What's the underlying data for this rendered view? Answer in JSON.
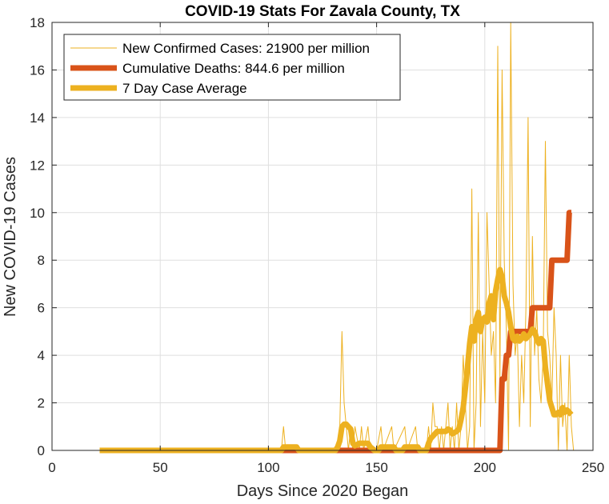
{
  "chart_data": {
    "type": "line",
    "title": "COVID-19 Stats For Zavala County, TX",
    "xlabel": "Days Since 2020 Began",
    "ylabel": "New COVID-19 Cases",
    "xlim": [
      0,
      250
    ],
    "ylim": [
      0,
      18
    ],
    "xticks": [
      0,
      50,
      100,
      150,
      200,
      250
    ],
    "yticks": [
      0,
      2,
      4,
      6,
      8,
      10,
      12,
      14,
      16,
      18
    ],
    "grid": true,
    "legend_position": "top-left",
    "series": [
      {
        "name": "New Confirmed Cases: 21900 per million",
        "color": "#EDB120",
        "style": "thin",
        "points": [
          [
            22,
            0
          ],
          [
            105,
            0
          ],
          [
            106,
            0
          ],
          [
            107,
            1
          ],
          [
            108,
            0
          ],
          [
            132,
            0
          ],
          [
            133,
            1
          ],
          [
            134,
            5
          ],
          [
            135,
            2
          ],
          [
            136,
            1
          ],
          [
            137,
            0
          ],
          [
            138,
            1
          ],
          [
            139,
            0
          ],
          [
            140,
            1
          ],
          [
            142,
            0
          ],
          [
            143,
            1
          ],
          [
            144,
            0
          ],
          [
            146,
            1
          ],
          [
            147,
            0
          ],
          [
            150,
            0
          ],
          [
            152,
            1
          ],
          [
            153,
            0
          ],
          [
            157,
            1
          ],
          [
            158,
            0
          ],
          [
            163,
            1
          ],
          [
            164,
            0
          ],
          [
            168,
            1
          ],
          [
            169,
            0
          ],
          [
            172,
            0
          ],
          [
            173,
            0
          ],
          [
            174,
            1
          ],
          [
            175,
            0
          ],
          [
            176,
            2
          ],
          [
            177,
            1
          ],
          [
            178,
            1
          ],
          [
            179,
            0
          ],
          [
            180,
            1
          ],
          [
            181,
            0
          ],
          [
            182,
            1
          ],
          [
            183,
            2
          ],
          [
            184,
            0
          ],
          [
            185,
            1
          ],
          [
            186,
            0
          ],
          [
            187,
            2
          ],
          [
            188,
            0
          ],
          [
            189,
            1
          ],
          [
            190,
            4
          ],
          [
            191,
            2
          ],
          [
            192,
            0
          ],
          [
            193,
            1
          ],
          [
            194,
            11
          ],
          [
            195,
            0
          ],
          [
            196,
            2
          ],
          [
            197,
            10
          ],
          [
            198,
            1
          ],
          [
            199,
            5
          ],
          [
            200,
            2
          ],
          [
            201,
            10
          ],
          [
            202,
            7
          ],
          [
            203,
            4
          ],
          [
            204,
            5
          ],
          [
            205,
            2
          ],
          [
            206,
            17
          ],
          [
            207,
            3
          ],
          [
            208,
            16
          ],
          [
            209,
            8
          ],
          [
            210,
            5
          ],
          [
            211,
            0
          ],
          [
            212,
            18
          ],
          [
            213,
            7
          ],
          [
            214,
            4
          ],
          [
            215,
            5
          ],
          [
            216,
            1
          ],
          [
            217,
            4
          ],
          [
            218,
            2
          ],
          [
            219,
            6
          ],
          [
            220,
            14
          ],
          [
            221,
            1
          ],
          [
            222,
            9
          ],
          [
            223,
            4
          ],
          [
            224,
            6
          ],
          [
            225,
            3
          ],
          [
            226,
            2
          ],
          [
            227,
            4
          ],
          [
            228,
            13
          ],
          [
            229,
            5
          ],
          [
            230,
            4
          ],
          [
            231,
            2
          ],
          [
            232,
            6
          ],
          [
            233,
            4
          ],
          [
            234,
            0
          ],
          [
            235,
            4
          ],
          [
            236,
            1
          ],
          [
            237,
            2
          ],
          [
            238,
            0
          ],
          [
            239,
            4
          ],
          [
            240,
            1
          ],
          [
            241,
            0
          ]
        ]
      },
      {
        "name": "Cumulative Deaths: 844.6 per million",
        "color": "#D95319",
        "style": "thick",
        "points": [
          [
            22,
            0
          ],
          [
            207,
            0
          ],
          [
            208,
            3
          ],
          [
            209,
            3
          ],
          [
            210,
            4
          ],
          [
            211,
            4
          ],
          [
            212,
            5
          ],
          [
            220,
            5
          ],
          [
            221,
            5
          ],
          [
            222,
            6
          ],
          [
            230,
            6
          ],
          [
            231,
            8
          ],
          [
            238,
            8
          ],
          [
            239,
            10
          ],
          [
            240,
            10
          ]
        ]
      },
      {
        "name": "7 Day Case Average",
        "color": "#EDB120",
        "style": "thick",
        "points": [
          [
            22,
            0
          ],
          [
            106,
            0
          ],
          [
            107,
            0.14
          ],
          [
            113,
            0.14
          ],
          [
            114,
            0
          ],
          [
            131,
            0
          ],
          [
            132,
            0.14
          ],
          [
            133,
            0.4
          ],
          [
            134,
            1.0
          ],
          [
            135,
            1.1
          ],
          [
            136,
            1.1
          ],
          [
            137,
            1.0
          ],
          [
            138,
            0.9
          ],
          [
            139,
            0.3
          ],
          [
            140,
            0.2
          ],
          [
            142,
            0.3
          ],
          [
            146,
            0.3
          ],
          [
            147,
            0.15
          ],
          [
            149,
            0
          ],
          [
            151,
            0
          ],
          [
            152,
            0.14
          ],
          [
            158,
            0.14
          ],
          [
            159,
            0
          ],
          [
            162,
            0
          ],
          [
            163,
            0.14
          ],
          [
            169,
            0.14
          ],
          [
            170,
            0
          ],
          [
            173,
            0
          ],
          [
            174,
            0.3
          ],
          [
            175,
            0.5
          ],
          [
            176,
            0.6
          ],
          [
            177,
            0.7
          ],
          [
            178,
            0.8
          ],
          [
            180,
            0.8
          ],
          [
            182,
            0.8
          ],
          [
            183,
            0.9
          ],
          [
            184,
            0.85
          ],
          [
            185,
            0.7
          ],
          [
            187,
            0.8
          ],
          [
            188,
            0.9
          ],
          [
            189,
            1.3
          ],
          [
            190,
            1.8
          ],
          [
            191,
            2.6
          ],
          [
            192,
            3.5
          ],
          [
            193,
            4.5
          ],
          [
            194,
            5.2
          ],
          [
            195,
            4.6
          ],
          [
            196,
            5.5
          ],
          [
            197,
            5.8
          ],
          [
            198,
            5.0
          ],
          [
            199,
            5.5
          ],
          [
            200,
            5.6
          ],
          [
            201,
            5.4
          ],
          [
            202,
            6.2
          ],
          [
            203,
            6.5
          ],
          [
            204,
            5.5
          ],
          [
            205,
            6.7
          ],
          [
            206,
            7.2
          ],
          [
            207,
            7.6
          ],
          [
            208,
            7.3
          ],
          [
            209,
            6.5
          ],
          [
            210,
            6.2
          ],
          [
            211,
            5.8
          ],
          [
            212,
            5.2
          ],
          [
            213,
            4.7
          ],
          [
            214,
            4.6
          ],
          [
            215,
            4.8
          ],
          [
            216,
            4.6
          ],
          [
            217,
            4.7
          ],
          [
            218,
            4.9
          ],
          [
            219,
            4.7
          ],
          [
            220,
            4.8
          ],
          [
            221,
            4.9
          ],
          [
            222,
            5.1
          ],
          [
            223,
            5.0
          ],
          [
            224,
            4.7
          ],
          [
            225,
            4.5
          ],
          [
            226,
            4.7
          ],
          [
            227,
            4.6
          ],
          [
            228,
            3.5
          ],
          [
            229,
            2.8
          ],
          [
            230,
            2.1
          ],
          [
            231,
            1.8
          ],
          [
            232,
            1.5
          ],
          [
            233,
            1.5
          ],
          [
            234,
            1.6
          ],
          [
            235,
            1.5
          ],
          [
            236,
            1.8
          ],
          [
            237,
            1.6
          ],
          [
            238,
            1.7
          ],
          [
            239,
            1.6
          ],
          [
            240,
            1.5
          ]
        ]
      }
    ]
  }
}
